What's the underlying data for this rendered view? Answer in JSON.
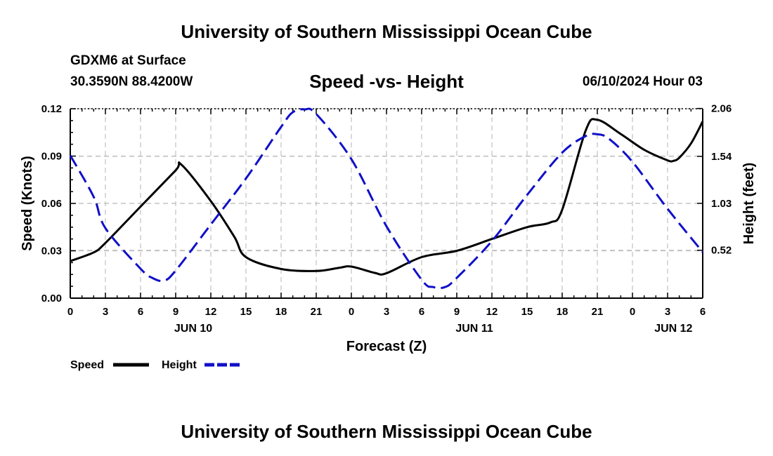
{
  "header": {
    "title": "University of Southern Mississippi Ocean Cube",
    "station": "GDXM6 at Surface",
    "coords": "30.3590N  88.4200W",
    "chart_title": "Speed -vs- Height",
    "datetime": "06/10/2024 Hour 03"
  },
  "footer": {
    "title": "University of Southern Mississippi Ocean Cube"
  },
  "chart_data": {
    "type": "line",
    "title": "Speed -vs- Height",
    "xlabel": "Forecast (Z)",
    "ylabel": "Speed (Knots)",
    "y2label": "Height (feet)",
    "xlim": [
      0,
      54
    ],
    "ylim": [
      0,
      0.12
    ],
    "y2lim": [
      0,
      2.0571
    ],
    "x_tick_labels": [
      "0",
      "3",
      "6",
      "9",
      "12",
      "15",
      "18",
      "21",
      "0",
      "3",
      "6",
      "9",
      "12",
      "15",
      "18",
      "21",
      "0",
      "3",
      "6"
    ],
    "day_labels": [
      {
        "label": "JUN 10",
        "x": 10.5
      },
      {
        "label": "JUN 11",
        "x": 34.5
      },
      {
        "label": "JUN 12",
        "x": 51.5
      }
    ],
    "y_tick_labels": [
      "0.00",
      "0.03",
      "0.06",
      "0.09",
      "0.12"
    ],
    "y_tick_values": [
      0,
      0.03,
      0.06,
      0.09,
      0.12
    ],
    "y2_tick_labels": [
      "0.52",
      "1.03",
      "1.54",
      "2.06"
    ],
    "y2_tick_values": [
      0.52,
      1.03,
      1.54,
      2.06
    ],
    "grid": true,
    "legend": [
      {
        "name": "Speed",
        "color": "#000000",
        "dash": "solid"
      },
      {
        "name": "Height",
        "color": "#1010c8",
        "dash": "dashed"
      }
    ],
    "series": [
      {
        "name": "Speed",
        "axis": "left",
        "color": "#000000",
        "x": [
          0,
          2,
          3,
          6,
          9,
          9.5,
          12,
          14,
          15,
          18,
          21,
          23,
          24,
          26,
          27,
          30,
          33,
          36,
          39,
          41,
          42,
          44,
          45,
          47,
          49,
          51,
          51.5,
          52,
          53,
          54
        ],
        "values": [
          0.0235,
          0.029,
          0.035,
          0.058,
          0.081,
          0.0845,
          0.0615,
          0.039,
          0.026,
          0.0185,
          0.0172,
          0.0193,
          0.02,
          0.016,
          0.0158,
          0.026,
          0.03,
          0.0375,
          0.045,
          0.048,
          0.056,
          0.106,
          0.113,
          0.104,
          0.094,
          0.0873,
          0.087,
          0.089,
          0.098,
          0.112
        ]
      },
      {
        "name": "Height",
        "axis": "right",
        "color": "#1010c8",
        "x": [
          0,
          2,
          3,
          6,
          7,
          8,
          9,
          12,
          15,
          18,
          19,
          20,
          21,
          24,
          27,
          30,
          31,
          32,
          33,
          36,
          39,
          42,
          44,
          45,
          46,
          48,
          51,
          54
        ],
        "values": [
          1.55,
          1.1,
          0.76,
          0.32,
          0.22,
          0.19,
          0.3,
          0.8,
          1.3,
          1.86,
          2.02,
          2.05,
          2.0,
          1.51,
          0.78,
          0.2,
          0.12,
          0.12,
          0.22,
          0.62,
          1.12,
          1.58,
          1.76,
          1.78,
          1.73,
          1.48,
          0.97,
          0.5
        ]
      }
    ]
  }
}
